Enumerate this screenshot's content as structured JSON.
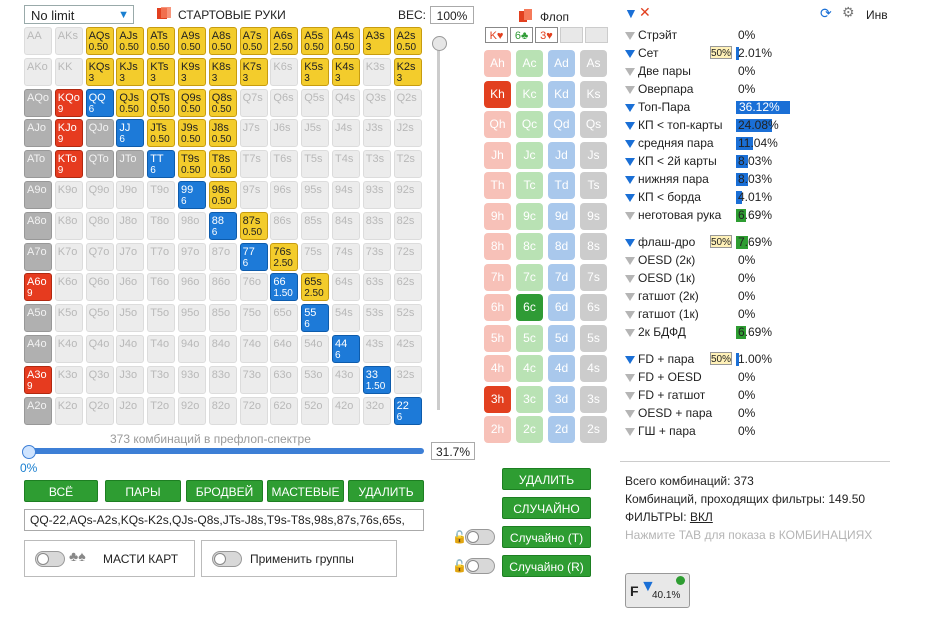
{
  "header": {
    "select_value": "No limit",
    "title": "СТАРТОВЫЕ РУКИ",
    "weight_label": "ВЕС:",
    "weight_value": "100%"
  },
  "matrix": {
    "cells": [
      [
        "AA",
        "gray",
        ""
      ],
      [
        "AKs",
        "gray",
        ""
      ],
      [
        "AQs",
        "yellow",
        "0.50"
      ],
      [
        "AJs",
        "yellow",
        "0.50"
      ],
      [
        "ATs",
        "yellow",
        "0.50"
      ],
      [
        "A9s",
        "yellow",
        "0.50"
      ],
      [
        "A8s",
        "yellow",
        "0.50"
      ],
      [
        "A7s",
        "yellow",
        "0.50"
      ],
      [
        "A6s",
        "yellow",
        "2.50"
      ],
      [
        "A5s",
        "yellow",
        "0.50"
      ],
      [
        "A4s",
        "yellow",
        "0.50"
      ],
      [
        "A3s",
        "yellow",
        "3"
      ],
      [
        "A2s",
        "yellow",
        "0.50"
      ],
      [
        "AKo",
        "gray",
        ""
      ],
      [
        "KK",
        "gray",
        ""
      ],
      [
        "KQs",
        "yellow",
        "3"
      ],
      [
        "KJs",
        "yellow",
        "3"
      ],
      [
        "KTs",
        "yellow",
        "3"
      ],
      [
        "K9s",
        "yellow",
        "3"
      ],
      [
        "K8s",
        "yellow",
        "3"
      ],
      [
        "K7s",
        "yellow",
        "3"
      ],
      [
        "K6s",
        "gray",
        ""
      ],
      [
        "K5s",
        "yellow",
        "3"
      ],
      [
        "K4s",
        "yellow",
        "3"
      ],
      [
        "K3s",
        "gray",
        ""
      ],
      [
        "K2s",
        "yellow",
        "3"
      ],
      [
        "AQo",
        "dark",
        ""
      ],
      [
        "KQo",
        "red",
        "9"
      ],
      [
        "QQ",
        "blue",
        "6"
      ],
      [
        "QJs",
        "yellow",
        "0.50"
      ],
      [
        "QTs",
        "yellow",
        "0.50"
      ],
      [
        "Q9s",
        "yellow",
        "0.50"
      ],
      [
        "Q8s",
        "yellow",
        "0.50"
      ],
      [
        "Q7s",
        "gray",
        ""
      ],
      [
        "Q6s",
        "gray",
        ""
      ],
      [
        "Q5s",
        "gray",
        ""
      ],
      [
        "Q4s",
        "gray",
        ""
      ],
      [
        "Q3s",
        "gray",
        ""
      ],
      [
        "Q2s",
        "gray",
        ""
      ],
      [
        "AJo",
        "dark",
        ""
      ],
      [
        "KJo",
        "red",
        "9"
      ],
      [
        "QJo",
        "dark",
        ""
      ],
      [
        "JJ",
        "blue",
        "6"
      ],
      [
        "JTs",
        "yellow",
        "0.50"
      ],
      [
        "J9s",
        "yellow",
        "0.50"
      ],
      [
        "J8s",
        "yellow",
        "0.50"
      ],
      [
        "J7s",
        "gray",
        ""
      ],
      [
        "J6s",
        "gray",
        ""
      ],
      [
        "J5s",
        "gray",
        ""
      ],
      [
        "J4s",
        "gray",
        ""
      ],
      [
        "J3s",
        "gray",
        ""
      ],
      [
        "J2s",
        "gray",
        ""
      ],
      [
        "ATo",
        "dark",
        ""
      ],
      [
        "KTo",
        "red",
        "9"
      ],
      [
        "QTo",
        "dark",
        ""
      ],
      [
        "JTo",
        "dark",
        ""
      ],
      [
        "TT",
        "blue",
        "6"
      ],
      [
        "T9s",
        "yellow",
        "0.50"
      ],
      [
        "T8s",
        "yellow",
        "0.50"
      ],
      [
        "T7s",
        "gray",
        ""
      ],
      [
        "T6s",
        "gray",
        ""
      ],
      [
        "T5s",
        "gray",
        ""
      ],
      [
        "T4s",
        "gray",
        ""
      ],
      [
        "T3s",
        "gray",
        ""
      ],
      [
        "T2s",
        "gray",
        ""
      ],
      [
        "A9o",
        "dark",
        ""
      ],
      [
        "K9o",
        "gray",
        ""
      ],
      [
        "Q9o",
        "gray",
        ""
      ],
      [
        "J9o",
        "gray",
        ""
      ],
      [
        "T9o",
        "gray",
        ""
      ],
      [
        "99",
        "blue",
        "6"
      ],
      [
        "98s",
        "yellow",
        "0.50"
      ],
      [
        "97s",
        "gray",
        ""
      ],
      [
        "96s",
        "gray",
        ""
      ],
      [
        "95s",
        "gray",
        ""
      ],
      [
        "94s",
        "gray",
        ""
      ],
      [
        "93s",
        "gray",
        ""
      ],
      [
        "92s",
        "gray",
        ""
      ],
      [
        "A8o",
        "dark",
        ""
      ],
      [
        "K8o",
        "gray",
        ""
      ],
      [
        "Q8o",
        "gray",
        ""
      ],
      [
        "J8o",
        "gray",
        ""
      ],
      [
        "T8o",
        "gray",
        ""
      ],
      [
        "98o",
        "gray",
        ""
      ],
      [
        "88",
        "blue",
        "6"
      ],
      [
        "87s",
        "yellow",
        "0.50"
      ],
      [
        "86s",
        "gray",
        ""
      ],
      [
        "85s",
        "gray",
        ""
      ],
      [
        "84s",
        "gray",
        ""
      ],
      [
        "83s",
        "gray",
        ""
      ],
      [
        "82s",
        "gray",
        ""
      ],
      [
        "A7o",
        "dark",
        ""
      ],
      [
        "K7o",
        "gray",
        ""
      ],
      [
        "Q7o",
        "gray",
        ""
      ],
      [
        "J7o",
        "gray",
        ""
      ],
      [
        "T7o",
        "gray",
        ""
      ],
      [
        "97o",
        "gray",
        ""
      ],
      [
        "87o",
        "gray",
        ""
      ],
      [
        "77",
        "blue",
        "6"
      ],
      [
        "76s",
        "yellow",
        "2.50"
      ],
      [
        "75s",
        "gray",
        ""
      ],
      [
        "74s",
        "gray",
        ""
      ],
      [
        "73s",
        "gray",
        ""
      ],
      [
        "72s",
        "gray",
        ""
      ],
      [
        "A6o",
        "red",
        "9"
      ],
      [
        "K6o",
        "gray",
        ""
      ],
      [
        "Q6o",
        "gray",
        ""
      ],
      [
        "J6o",
        "gray",
        ""
      ],
      [
        "T6o",
        "gray",
        ""
      ],
      [
        "96o",
        "gray",
        ""
      ],
      [
        "86o",
        "gray",
        ""
      ],
      [
        "76o",
        "gray",
        ""
      ],
      [
        "66",
        "blue",
        "1.50"
      ],
      [
        "65s",
        "yellow",
        "2.50"
      ],
      [
        "64s",
        "gray",
        ""
      ],
      [
        "63s",
        "gray",
        ""
      ],
      [
        "62s",
        "gray",
        ""
      ],
      [
        "A5o",
        "dark",
        ""
      ],
      [
        "K5o",
        "gray",
        ""
      ],
      [
        "Q5o",
        "gray",
        ""
      ],
      [
        "J5o",
        "gray",
        ""
      ],
      [
        "T5o",
        "gray",
        ""
      ],
      [
        "95o",
        "gray",
        ""
      ],
      [
        "85o",
        "gray",
        ""
      ],
      [
        "75o",
        "gray",
        ""
      ],
      [
        "65o",
        "gray",
        ""
      ],
      [
        "55",
        "blue",
        "6"
      ],
      [
        "54s",
        "gray",
        ""
      ],
      [
        "53s",
        "gray",
        ""
      ],
      [
        "52s",
        "gray",
        ""
      ],
      [
        "A4o",
        "dark",
        ""
      ],
      [
        "K4o",
        "gray",
        ""
      ],
      [
        "Q4o",
        "gray",
        ""
      ],
      [
        "J4o",
        "gray",
        ""
      ],
      [
        "T4o",
        "gray",
        ""
      ],
      [
        "94o",
        "gray",
        ""
      ],
      [
        "84o",
        "gray",
        ""
      ],
      [
        "74o",
        "gray",
        ""
      ],
      [
        "64o",
        "gray",
        ""
      ],
      [
        "54o",
        "gray",
        ""
      ],
      [
        "44",
        "blue",
        "6"
      ],
      [
        "43s",
        "gray",
        ""
      ],
      [
        "42s",
        "gray",
        ""
      ],
      [
        "A3o",
        "red",
        "9"
      ],
      [
        "K3o",
        "gray",
        ""
      ],
      [
        "Q3o",
        "gray",
        ""
      ],
      [
        "J3o",
        "gray",
        ""
      ],
      [
        "T3o",
        "gray",
        ""
      ],
      [
        "93o",
        "gray",
        ""
      ],
      [
        "83o",
        "gray",
        ""
      ],
      [
        "73o",
        "gray",
        ""
      ],
      [
        "63o",
        "gray",
        ""
      ],
      [
        "53o",
        "gray",
        ""
      ],
      [
        "43o",
        "gray",
        ""
      ],
      [
        "33",
        "blue",
        "1.50"
      ],
      [
        "32s",
        "gray",
        ""
      ],
      [
        "A2o",
        "dark",
        ""
      ],
      [
        "K2o",
        "gray",
        ""
      ],
      [
        "Q2o",
        "gray",
        ""
      ],
      [
        "J2o",
        "gray",
        ""
      ],
      [
        "T2o",
        "gray",
        ""
      ],
      [
        "92o",
        "gray",
        ""
      ],
      [
        "82o",
        "gray",
        ""
      ],
      [
        "72o",
        "gray",
        ""
      ],
      [
        "62o",
        "gray",
        ""
      ],
      [
        "52o",
        "gray",
        ""
      ],
      [
        "42o",
        "gray",
        ""
      ],
      [
        "32o",
        "gray",
        ""
      ],
      [
        "22",
        "blue",
        "6"
      ]
    ]
  },
  "range": {
    "caption": "373 комбинаций в префлоп-спектре",
    "slider_value": 0.317,
    "slider_pct": "31.7%",
    "slider_min": "0%",
    "text": "QQ-22,AQs-A2s,KQs-K2s,QJs-Q8s,JTs-J8s,T9s-T8s,98s,87s,76s,65s,"
  },
  "buttons": {
    "all": "ВСЁ",
    "pairs": "ПАРЫ",
    "broadway": "БРОДВЕЙ",
    "suited": "МАСТЕВЫЕ",
    "delete": "УДАЛИТЬ"
  },
  "toggles": {
    "suits": "МАСТИ КАРТ",
    "groups": "Применить группы"
  },
  "board": {
    "label": "Флоп",
    "slots": [
      {
        "text": "K♥",
        "color": "#e2401f"
      },
      {
        "text": "6♣",
        "color": "#2f9b35"
      },
      {
        "text": "3♥",
        "color": "#e2401f"
      },
      {
        "text": "",
        "color": ""
      },
      {
        "text": "",
        "color": ""
      }
    ],
    "ranks": [
      "A",
      "K",
      "Q",
      "J",
      "T",
      "9",
      "8",
      "7",
      "6",
      "5",
      "4",
      "3",
      "2"
    ],
    "selected": [
      "Kh",
      "6c",
      "3h"
    ],
    "delete": "УДАЛИТЬ",
    "random": "СЛУЧАЙНО",
    "random_t": "Случайно (T)",
    "random_r": "Случайно (R)"
  },
  "filters_panel": {
    "inv_label": "Инв",
    "rows": [
      {
        "label": "Стрэйт",
        "value": "0%",
        "active": false,
        "bar": 0,
        "badge": ""
      },
      {
        "label": "Сет",
        "value": "2.01%",
        "active": true,
        "bar": 0.02,
        "badge": "50%"
      },
      {
        "label": "Две пары",
        "value": "0%",
        "active": false,
        "bar": 0,
        "badge": ""
      },
      {
        "label": "Оверпара",
        "value": "0%",
        "active": false,
        "bar": 0,
        "badge": ""
      },
      {
        "label": "Топ-Пара",
        "value": "36.12%",
        "active": true,
        "bar": 0.3612,
        "badge": ""
      },
      {
        "label": "КП < топ-карты",
        "value": "24.08%",
        "active": true,
        "bar": 0.2408,
        "badge": ""
      },
      {
        "label": "средняя пара",
        "value": "11.04%",
        "active": true,
        "bar": 0.1104,
        "badge": ""
      },
      {
        "label": "КП < 2й карты",
        "value": "8.03%",
        "active": true,
        "bar": 0.0803,
        "badge": ""
      },
      {
        "label": "нижняя пара",
        "value": "8.03%",
        "active": true,
        "bar": 0.0803,
        "badge": ""
      },
      {
        "label": "КП < борда",
        "value": "4.01%",
        "active": true,
        "bar": 0.0401,
        "badge": ""
      },
      {
        "label": "неготовая рука",
        "value": "6.69%",
        "active": false,
        "bar": 0.0669,
        "badge": ""
      }
    ],
    "draw_rows": [
      {
        "label": "флаш-дро",
        "value": "7.69%",
        "active": true,
        "bar": 0.0769,
        "badge": "50%"
      },
      {
        "label": "OESD (2к)",
        "value": "0%",
        "active": false,
        "bar": 0,
        "badge": ""
      },
      {
        "label": "OESD (1к)",
        "value": "0%",
        "active": false,
        "bar": 0,
        "badge": ""
      },
      {
        "label": "гатшот (2к)",
        "value": "0%",
        "active": false,
        "bar": 0,
        "badge": ""
      },
      {
        "label": "гатшот (1к)",
        "value": "0%",
        "active": false,
        "bar": 0,
        "badge": ""
      },
      {
        "label": "2к БДФД",
        "value": "6.69%",
        "active": false,
        "bar": 0.0669,
        "badge": ""
      }
    ],
    "combo_rows": [
      {
        "label": "FD + пара",
        "value": "1.00%",
        "active": true,
        "bar": 0.01,
        "badge": "50%"
      },
      {
        "label": "FD + OESD",
        "value": "0%",
        "active": false,
        "bar": 0,
        "badge": ""
      },
      {
        "label": "FD + гатшот",
        "value": "0%",
        "active": false,
        "bar": 0,
        "badge": ""
      },
      {
        "label": "OESD + пара",
        "value": "0%",
        "active": false,
        "bar": 0,
        "badge": ""
      },
      {
        "label": "ГШ + пара",
        "value": "0%",
        "active": false,
        "bar": 0,
        "badge": ""
      }
    ],
    "total_combos": "Всего комбинаций: 373",
    "passing_combos": "Комбинаций, проходящих фильтры: 149.50",
    "filters_label": "ФИЛЬТРЫ:",
    "filters_state": "ВКЛ",
    "hint": "Нажмите TAB для показа в КОМБИНАЦИЯХ",
    "f_badge": "40.1%"
  }
}
